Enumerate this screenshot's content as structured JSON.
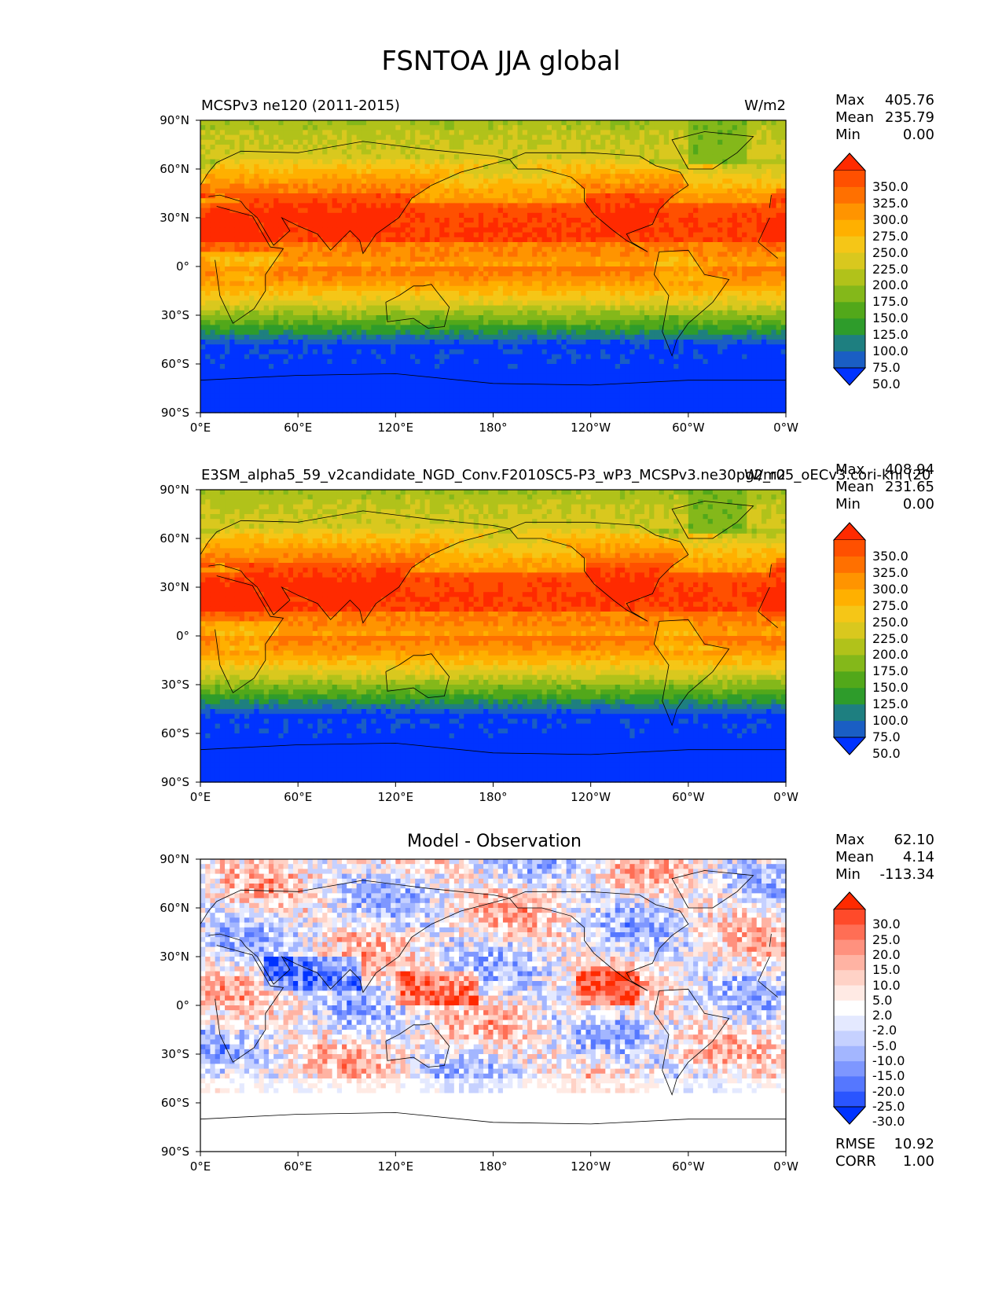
{
  "figure_title": "FSNTOA JJA global",
  "chart_data": [
    {
      "type": "heatmap",
      "panel": "test",
      "title": "MCSPv3 ne120 (2011-2015)",
      "units": "W/m2",
      "stats": {
        "max": "405.76",
        "mean": "235.79",
        "min": "0.00"
      },
      "colorbar_levels": [
        "350.0",
        "325.0",
        "300.0",
        "275.0",
        "250.0",
        "225.0",
        "200.0",
        "175.0",
        "150.0",
        "125.0",
        "100.0",
        "75.0",
        "50.0"
      ],
      "xticks": [
        "0°E",
        "60°E",
        "120°E",
        "180°",
        "120°W",
        "60°W",
        "0°W"
      ],
      "yticks": [
        "90°N",
        "60°N",
        "30°N",
        "0°",
        "30°S",
        "60°S",
        "90°S"
      ],
      "xlim": [
        0,
        360
      ],
      "ylim": [
        -90,
        90
      ]
    },
    {
      "type": "heatmap",
      "panel": "reference",
      "title": "E3SM_alpha5_59_v2candidate_NGD_Conv.F2010SC5-P3_wP3_MCSPv3.ne30pg2_r05_oECv3.cori-knl (20",
      "units": "W/m2",
      "stats": {
        "max": "408.94",
        "mean": "231.65",
        "min": "0.00"
      },
      "colorbar_levels": [
        "350.0",
        "325.0",
        "300.0",
        "275.0",
        "250.0",
        "225.0",
        "200.0",
        "175.0",
        "150.0",
        "125.0",
        "100.0",
        "75.0",
        "50.0"
      ],
      "xticks": [
        "0°E",
        "60°E",
        "120°E",
        "180°",
        "120°W",
        "60°W",
        "0°W"
      ],
      "yticks": [
        "90°N",
        "60°N",
        "30°N",
        "0°",
        "30°S",
        "60°S",
        "90°S"
      ],
      "xlim": [
        0,
        360
      ],
      "ylim": [
        -90,
        90
      ]
    },
    {
      "type": "heatmap",
      "panel": "difference",
      "title": "Model - Observation",
      "stats": {
        "max": "62.10",
        "mean": "4.14",
        "min": "-113.34"
      },
      "rmse": "10.92",
      "corr": "1.00",
      "colorbar_levels": [
        "30.0",
        "25.0",
        "20.0",
        "15.0",
        "10.0",
        "5.0",
        "2.0",
        "-2.0",
        "-5.0",
        "-10.0",
        "-15.0",
        "-20.0",
        "-25.0",
        "-30.0"
      ],
      "xticks": [
        "0°E",
        "60°E",
        "120°E",
        "180°",
        "120°W",
        "60°W",
        "0°W"
      ],
      "yticks": [
        "90°N",
        "60°N",
        "30°N",
        "0°",
        "30°S",
        "60°S",
        "90°S"
      ],
      "xlim": [
        0,
        360
      ],
      "ylim": [
        -90,
        90
      ]
    }
  ],
  "labels": {
    "max": "Max",
    "mean": "Mean",
    "min": "Min",
    "rmse": "RMSE",
    "corr": "CORR"
  },
  "palettes": {
    "fsntoa": [
      "#ff2a00",
      "#ff5000",
      "#ff7000",
      "#ff9400",
      "#ffb000",
      "#f5c617",
      "#d9c81e",
      "#b1c21a",
      "#84b81a",
      "#52a81a",
      "#2e9c2b",
      "#1e7f80",
      "#1a5ec4",
      "#0033ff"
    ],
    "diff": [
      "#ff2a00",
      "#ff4a2a",
      "#ff6e55",
      "#ff917e",
      "#ffb3a3",
      "#ffd2c6",
      "#ffeae4",
      "#ffffff",
      "#e4e9ff",
      "#c6d1ff",
      "#a3b6ff",
      "#7e97ff",
      "#5577ff",
      "#2a55ff",
      "#0033ff"
    ]
  }
}
